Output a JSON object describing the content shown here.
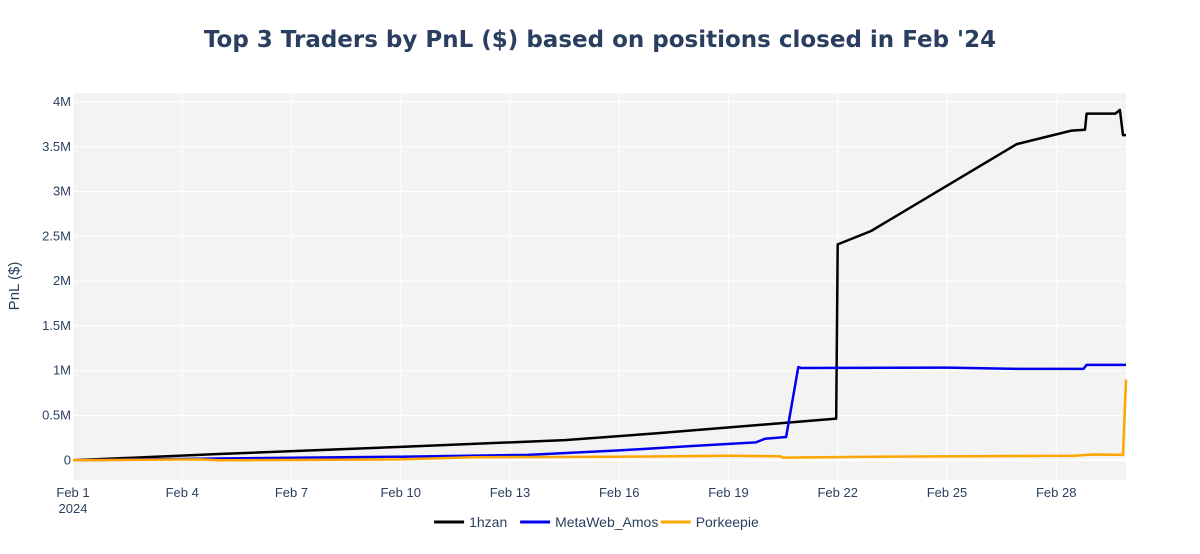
{
  "chart_data": {
    "type": "line",
    "title": "Top 3 Traders by PnL ($) based on positions closed in Feb '24",
    "xlabel": "",
    "ylabel": "PnL ($)",
    "x_ticks": [
      {
        "x": "2024-02-01",
        "label": "Feb 1",
        "sublabel": "2024"
      },
      {
        "x": "2024-02-04",
        "label": "Feb 4"
      },
      {
        "x": "2024-02-07",
        "label": "Feb 7"
      },
      {
        "x": "2024-02-10",
        "label": "Feb 10"
      },
      {
        "x": "2024-02-13",
        "label": "Feb 13"
      },
      {
        "x": "2024-02-16",
        "label": "Feb 16"
      },
      {
        "x": "2024-02-19",
        "label": "Feb 19"
      },
      {
        "x": "2024-02-22",
        "label": "Feb 22"
      },
      {
        "x": "2024-02-25",
        "label": "Feb 25"
      },
      {
        "x": "2024-02-28",
        "label": "Feb 28"
      }
    ],
    "y_ticks": [
      {
        "v": 0,
        "label": "0"
      },
      {
        "v": 500000,
        "label": "0.5M"
      },
      {
        "v": 1000000,
        "label": "1M"
      },
      {
        "v": 1500000,
        "label": "1.5M"
      },
      {
        "v": 2000000,
        "label": "2M"
      },
      {
        "v": 2500000,
        "label": "2.5M"
      },
      {
        "v": 3000000,
        "label": "3M"
      },
      {
        "v": 3500000,
        "label": "3.5M"
      },
      {
        "v": 4000000,
        "label": "4M"
      }
    ],
    "xlim": [
      "2024-02-01 00:00",
      "2024-02-29 22:00"
    ],
    "ylim": [
      -220000,
      4100000
    ],
    "grid": true,
    "legend_position": "bottom-center",
    "series": [
      {
        "name": "1hzan",
        "color": "#000000",
        "points": [
          [
            "2024-02-01 00:00",
            0
          ],
          [
            "2024-02-05 00:00",
            70000
          ],
          [
            "2024-02-10 00:00",
            150000
          ],
          [
            "2024-02-14 12:00",
            225000
          ],
          [
            "2024-02-17 00:00",
            300000
          ],
          [
            "2024-02-20 00:00",
            400000
          ],
          [
            "2024-02-21 23:00",
            465000
          ],
          [
            "2024-02-22 00:00",
            2410000
          ],
          [
            "2024-02-22 22:00",
            2560000
          ],
          [
            "2024-02-26 22:00",
            3530000
          ],
          [
            "2024-02-28 10:00",
            3680000
          ],
          [
            "2024-02-28 19:00",
            3690000
          ],
          [
            "2024-02-28 20:00",
            3870000
          ],
          [
            "2024-02-29 15:00",
            3870000
          ],
          [
            "2024-02-29 18:00",
            3910000
          ],
          [
            "2024-02-29 20:00",
            3630000
          ],
          [
            "2024-02-29 22:00",
            3630000
          ]
        ]
      },
      {
        "name": "MetaWeb_Amos",
        "color": "#0000ee",
        "points": [
          [
            "2024-02-01 00:00",
            0
          ],
          [
            "2024-02-05 00:00",
            20000
          ],
          [
            "2024-02-10 00:00",
            40000
          ],
          [
            "2024-02-13 12:00",
            60000
          ],
          [
            "2024-02-16 00:00",
            110000
          ],
          [
            "2024-02-18 00:00",
            160000
          ],
          [
            "2024-02-19 18:00",
            200000
          ],
          [
            "2024-02-20 00:00",
            240000
          ],
          [
            "2024-02-20 14:00",
            260000
          ],
          [
            "2024-02-20 22:00",
            1040000
          ],
          [
            "2024-02-21 00:00",
            1030000
          ],
          [
            "2024-02-25 00:00",
            1035000
          ],
          [
            "2024-02-27 00:00",
            1020000
          ],
          [
            "2024-02-28 18:00",
            1020000
          ],
          [
            "2024-02-28 20:00",
            1065000
          ],
          [
            "2024-02-29 22:00",
            1065000
          ]
        ]
      },
      {
        "name": "Porkeepie",
        "color": "#ffa500",
        "points": [
          [
            "2024-02-01 00:00",
            0
          ],
          [
            "2024-02-04 12:00",
            10000
          ],
          [
            "2024-02-05 00:00",
            0
          ],
          [
            "2024-02-10 00:00",
            10000
          ],
          [
            "2024-02-12 00:00",
            35000
          ],
          [
            "2024-02-16 00:00",
            40000
          ],
          [
            "2024-02-19 00:00",
            50000
          ],
          [
            "2024-02-20 10:00",
            45000
          ],
          [
            "2024-02-20 12:00",
            30000
          ],
          [
            "2024-02-23 00:00",
            40000
          ],
          [
            "2024-02-28 12:00",
            50000
          ],
          [
            "2024-02-29 00:00",
            65000
          ],
          [
            "2024-02-29 20:00",
            60000
          ],
          [
            "2024-02-29 22:00",
            900000
          ]
        ]
      }
    ]
  }
}
